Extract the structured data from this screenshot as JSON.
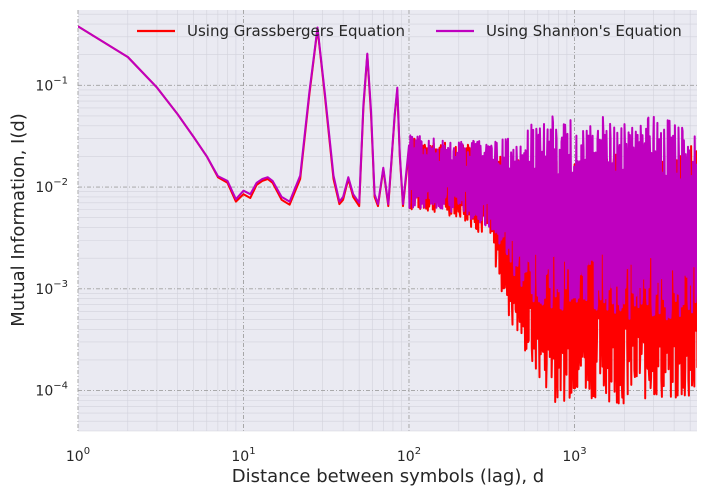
{
  "chart_data": {
    "type": "line",
    "title": "",
    "xlabel": "Distance between symbols (lag), d",
    "ylabel": "Mutual Information, I(d)",
    "xscale": "log",
    "yscale": "log",
    "xlim": [
      1,
      5500
    ],
    "ylim": [
      4e-05,
      0.55
    ],
    "grid": "on",
    "legend_position": "top",
    "x_ticks": [
      {
        "value": 1,
        "base": "10",
        "exp": "0"
      },
      {
        "value": 10,
        "base": "10",
        "exp": "1"
      },
      {
        "value": 100,
        "base": "10",
        "exp": "2"
      },
      {
        "value": 1000,
        "base": "10",
        "exp": "3"
      }
    ],
    "y_ticks": [
      {
        "value": 0.0001,
        "base": "10",
        "exp": "−4"
      },
      {
        "value": 0.001,
        "base": "10",
        "exp": "−3"
      },
      {
        "value": 0.01,
        "base": "10",
        "exp": "−2"
      },
      {
        "value": 0.1,
        "base": "10",
        "exp": "−1"
      }
    ],
    "series": [
      {
        "name": "Using Grassbergers Equation",
        "color": "#ff0000",
        "points": [
          [
            1,
            0.38
          ],
          [
            2,
            0.19
          ],
          [
            3,
            0.095
          ],
          [
            4,
            0.052
          ],
          [
            5,
            0.031
          ],
          [
            6,
            0.02
          ],
          [
            7,
            0.0125
          ],
          [
            8,
            0.011
          ],
          [
            9,
            0.0072
          ],
          [
            10,
            0.0085
          ],
          [
            11,
            0.0078
          ],
          [
            12,
            0.0105
          ],
          [
            13,
            0.0115
          ],
          [
            14,
            0.012
          ],
          [
            15,
            0.011
          ],
          [
            17,
            0.0075
          ],
          [
            19,
            0.0067
          ],
          [
            22,
            0.012
          ],
          [
            25,
            0.08
          ],
          [
            28,
            0.36
          ],
          [
            31,
            0.08
          ],
          [
            35,
            0.012
          ],
          [
            38,
            0.0068
          ],
          [
            40,
            0.0075
          ],
          [
            43,
            0.012
          ],
          [
            46,
            0.008
          ],
          [
            50,
            0.0065
          ],
          [
            53,
            0.06
          ],
          [
            56,
            0.2
          ],
          [
            59,
            0.05
          ],
          [
            62,
            0.008
          ],
          [
            65,
            0.0065
          ],
          [
            70,
            0.015
          ],
          [
            75,
            0.0065
          ],
          [
            82,
            0.05
          ],
          [
            85,
            0.09
          ],
          [
            88,
            0.02
          ],
          [
            92,
            0.0065
          ]
        ],
        "envelope": [
          [
            100,
            0.0058,
            0.032
          ],
          [
            150,
            0.0055,
            0.028
          ],
          [
            200,
            0.005,
            0.027
          ],
          [
            300,
            0.003,
            0.024
          ],
          [
            400,
            0.0005,
            0.018
          ],
          [
            500,
            0.00022,
            0.02
          ],
          [
            600,
            0.00012,
            0.025
          ],
          [
            700,
            9e-05,
            0.02
          ],
          [
            800,
            7e-05,
            0.022
          ],
          [
            1000,
            9e-05,
            0.022
          ],
          [
            1500,
            8e-05,
            0.023
          ],
          [
            2000,
            7e-05,
            0.02
          ],
          [
            3000,
            8e-05,
            0.022
          ],
          [
            4000,
            7e-05,
            0.024
          ],
          [
            5500,
            7e-05,
            0.026
          ]
        ]
      },
      {
        "name": "Using Shannon's Equation",
        "color": "#bf00bf",
        "points": [
          [
            1,
            0.38
          ],
          [
            2,
            0.19
          ],
          [
            3,
            0.095
          ],
          [
            4,
            0.052
          ],
          [
            5,
            0.031
          ],
          [
            6,
            0.02
          ],
          [
            7,
            0.0128
          ],
          [
            8,
            0.0115
          ],
          [
            9,
            0.0076
          ],
          [
            10,
            0.0092
          ],
          [
            11,
            0.0085
          ],
          [
            12,
            0.011
          ],
          [
            13,
            0.012
          ],
          [
            14,
            0.0125
          ],
          [
            15,
            0.0115
          ],
          [
            17,
            0.008
          ],
          [
            19,
            0.0072
          ],
          [
            22,
            0.013
          ],
          [
            25,
            0.085
          ],
          [
            28,
            0.37
          ],
          [
            31,
            0.085
          ],
          [
            35,
            0.013
          ],
          [
            38,
            0.0072
          ],
          [
            40,
            0.008
          ],
          [
            43,
            0.0125
          ],
          [
            46,
            0.0085
          ],
          [
            50,
            0.007
          ],
          [
            53,
            0.065
          ],
          [
            56,
            0.205
          ],
          [
            59,
            0.055
          ],
          [
            62,
            0.0085
          ],
          [
            65,
            0.0068
          ],
          [
            70,
            0.0155
          ],
          [
            75,
            0.0068
          ],
          [
            82,
            0.052
          ],
          [
            85,
            0.095
          ],
          [
            88,
            0.021
          ],
          [
            92,
            0.0068
          ]
        ],
        "envelope": [
          [
            100,
            0.0062,
            0.033
          ],
          [
            150,
            0.006,
            0.03
          ],
          [
            200,
            0.0055,
            0.029
          ],
          [
            300,
            0.004,
            0.028
          ],
          [
            400,
            0.0015,
            0.03
          ],
          [
            500,
            0.0008,
            0.04
          ],
          [
            600,
            0.0007,
            0.05
          ],
          [
            700,
            0.0006,
            0.055
          ],
          [
            800,
            0.0006,
            0.05
          ],
          [
            1000,
            0.0006,
            0.045
          ],
          [
            1500,
            0.0006,
            0.05
          ],
          [
            2000,
            0.0005,
            0.045
          ],
          [
            3000,
            0.0005,
            0.05
          ],
          [
            4000,
            0.0005,
            0.045
          ],
          [
            5500,
            0.0005,
            0.03
          ]
        ]
      }
    ]
  }
}
